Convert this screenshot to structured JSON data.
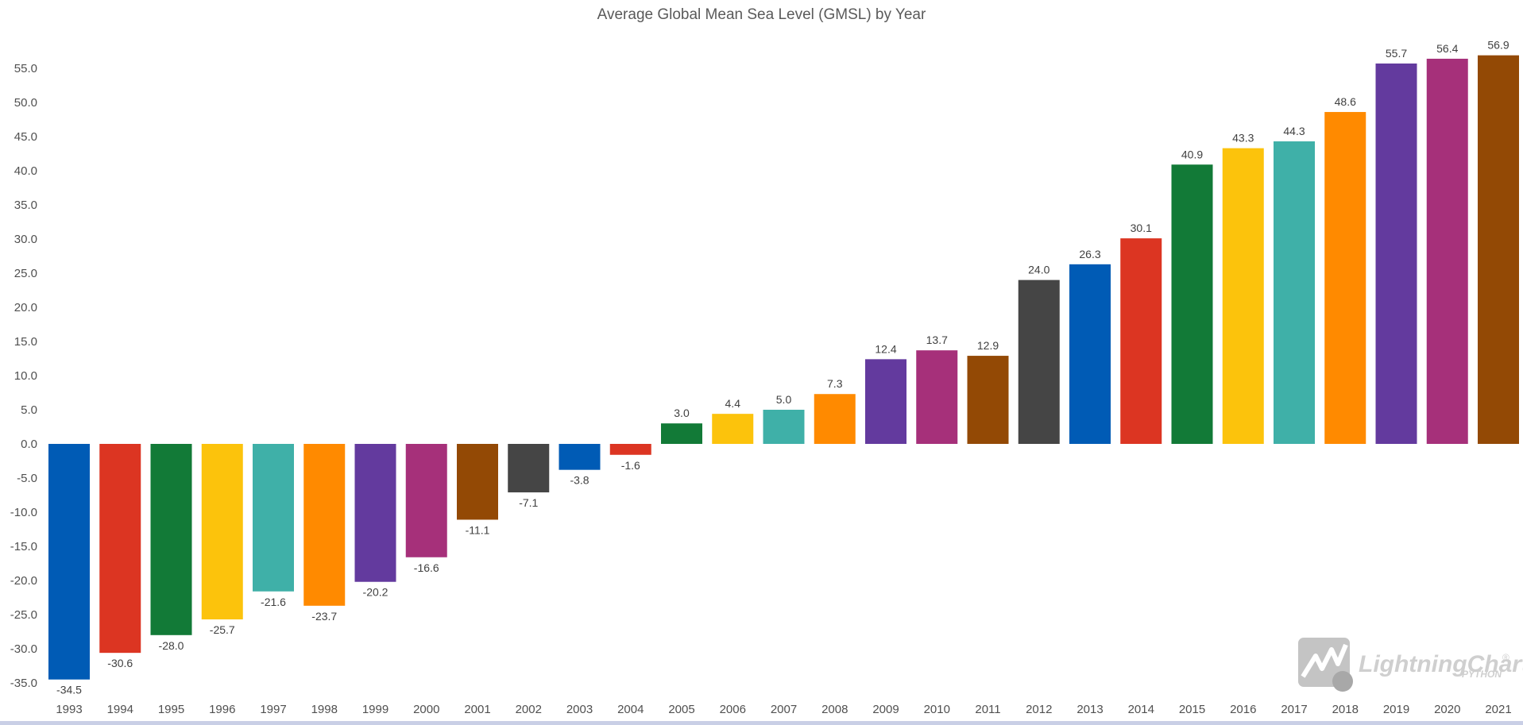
{
  "chart_data": {
    "type": "bar",
    "title": "Average Global Mean Sea Level (GMSL) by Year",
    "xlabel": "",
    "ylabel": "",
    "ylim": [
      -35,
      57
    ],
    "yticks": [
      "55.0",
      "50.0",
      "45.0",
      "40.0",
      "35.0",
      "30.0",
      "25.0",
      "20.0",
      "15.0",
      "10.0",
      "5.0",
      "0.0",
      "-5.0",
      "-10.0",
      "-15.0",
      "-20.0",
      "-25.0",
      "-30.0",
      "-35.0"
    ],
    "categories": [
      "1993",
      "1994",
      "1995",
      "1996",
      "1997",
      "1998",
      "1999",
      "2000",
      "2001",
      "2002",
      "2003",
      "2004",
      "2005",
      "2006",
      "2007",
      "2008",
      "2009",
      "2010",
      "2011",
      "2012",
      "2013",
      "2014",
      "2015",
      "2016",
      "2017",
      "2018",
      "2019",
      "2020",
      "2021"
    ],
    "values": [
      -34.5,
      -30.6,
      -28.0,
      -25.7,
      -21.6,
      -23.7,
      -20.2,
      -16.6,
      -11.1,
      -7.1,
      -3.8,
      -1.6,
      3.0,
      4.4,
      5.0,
      7.3,
      12.4,
      13.7,
      12.9,
      24.0,
      26.3,
      30.1,
      40.9,
      43.3,
      44.3,
      48.6,
      55.7,
      56.4,
      56.9
    ],
    "labels": [
      "-34.5",
      "-30.6",
      "-28.0",
      "-25.7",
      "-21.6",
      "-23.7",
      "-20.2",
      "-16.6",
      "-11.1",
      "-7.1",
      "-3.8",
      "-1.6",
      "3.0",
      "4.4",
      "5.0",
      "7.3",
      "12.4",
      "13.7",
      "12.9",
      "24.0",
      "26.3",
      "30.1",
      "40.9",
      "43.3",
      "44.3",
      "48.6",
      "55.7",
      "56.4",
      "56.9"
    ],
    "palette": [
      "#005bb5",
      "#dc3522",
      "#127a37",
      "#fcc30c",
      "#3fb0a8",
      "#ff8a00",
      "#633a9e",
      "#a6307a",
      "#934905",
      "#454545"
    ],
    "grid": false,
    "legend": "none"
  },
  "branding": {
    "logo_text": "LightningChart",
    "logo_sub": "PYTHON",
    "logo_mark": "®"
  }
}
